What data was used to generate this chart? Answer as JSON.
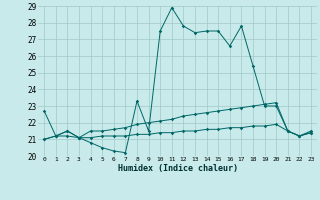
{
  "xlabel": "Humidex (Indice chaleur)",
  "background_color": "#c8eaea",
  "grid_color": "#a0c8c8",
  "line_color": "#006666",
  "xlim": [
    -0.5,
    23.5
  ],
  "ylim": [
    20,
    29
  ],
  "yticks": [
    20,
    21,
    22,
    23,
    24,
    25,
    26,
    27,
    28,
    29
  ],
  "xticks": [
    0,
    1,
    2,
    3,
    4,
    5,
    6,
    7,
    8,
    9,
    10,
    11,
    12,
    13,
    14,
    15,
    16,
    17,
    18,
    19,
    20,
    21,
    22,
    23
  ],
  "line1_x": [
    0,
    1,
    2,
    3,
    4,
    5,
    6,
    7,
    8,
    9,
    10,
    11,
    12,
    13,
    14,
    15,
    16,
    17,
    18,
    19,
    20,
    21,
    22,
    23
  ],
  "line1_y": [
    22.7,
    21.2,
    21.5,
    21.1,
    20.8,
    20.5,
    20.3,
    20.2,
    23.3,
    21.5,
    27.5,
    28.9,
    27.8,
    27.4,
    27.5,
    27.5,
    26.6,
    27.8,
    25.4,
    23.0,
    23.0,
    21.5,
    21.2,
    21.4
  ],
  "line2_x": [
    0,
    1,
    2,
    3,
    4,
    5,
    6,
    7,
    8,
    9,
    10,
    11,
    12,
    13,
    14,
    15,
    16,
    17,
    18,
    19,
    20,
    21,
    22,
    23
  ],
  "line2_y": [
    21.0,
    21.2,
    21.5,
    21.1,
    21.5,
    21.5,
    21.6,
    21.7,
    21.9,
    22.0,
    22.1,
    22.2,
    22.4,
    22.5,
    22.6,
    22.7,
    22.8,
    22.9,
    23.0,
    23.1,
    23.2,
    21.5,
    21.2,
    21.5
  ],
  "line3_x": [
    0,
    1,
    2,
    3,
    4,
    5,
    6,
    7,
    8,
    9,
    10,
    11,
    12,
    13,
    14,
    15,
    16,
    17,
    18,
    19,
    20,
    21,
    22,
    23
  ],
  "line3_y": [
    21.0,
    21.2,
    21.2,
    21.1,
    21.1,
    21.2,
    21.2,
    21.2,
    21.3,
    21.3,
    21.4,
    21.4,
    21.5,
    21.5,
    21.6,
    21.6,
    21.7,
    21.7,
    21.8,
    21.8,
    21.9,
    21.5,
    21.2,
    21.4
  ]
}
